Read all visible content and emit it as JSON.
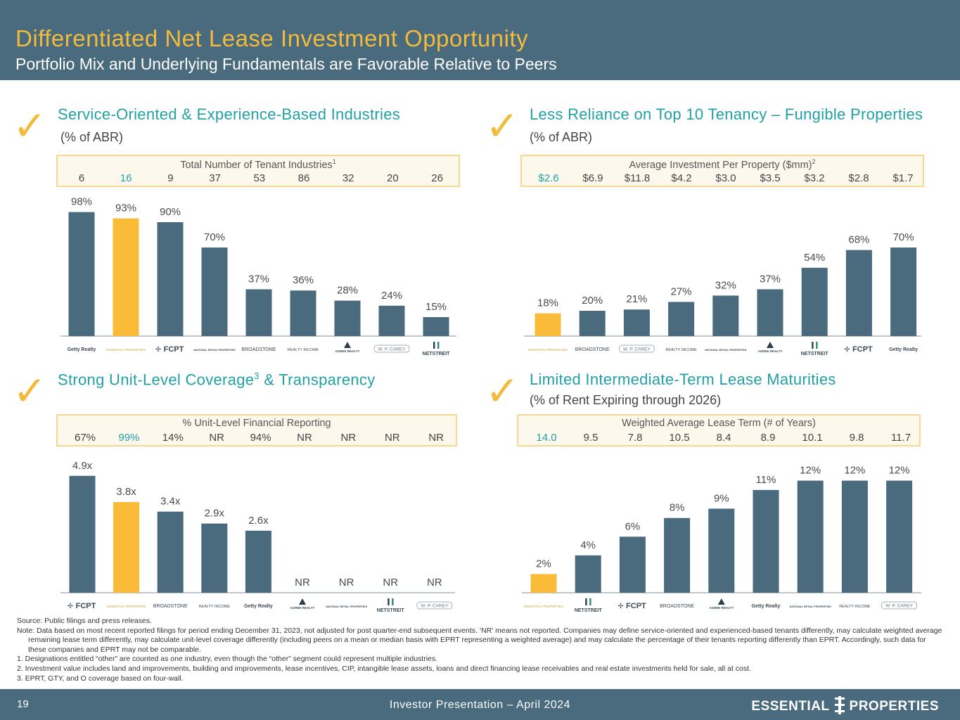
{
  "header": {
    "title": "Differentiated Net Lease Investment Opportunity",
    "subtitle": "Portfolio Mix and Underlying Fundamentals are Favorable Relative to Peers"
  },
  "check_icon": "✓",
  "colors": {
    "bar": "#4a6a7e",
    "highlight": "#f9bb38",
    "accent_text": "#21a0a6",
    "title_gold": "#f3bb3c"
  },
  "q1": {
    "title": "Service-Oriented & Experience-Based Industries",
    "subtitle": "(% of ABR)",
    "box_title": "Total Number of Tenant Industries",
    "box_sup": "1",
    "box_values": [
      "6",
      "16",
      "9",
      "37",
      "53",
      "86",
      "32",
      "20",
      "26"
    ]
  },
  "q2": {
    "title": "Less Reliance on Top 10 Tenancy – Fungible Properties",
    "subtitle": "(% of ABR)",
    "box_title": "Average Investment Per Property ($mm)",
    "box_sup": "2",
    "box_values": [
      "$2.6",
      "$6.9",
      "$11.8",
      "$4.2",
      "$3.0",
      "$3.5",
      "$3.2",
      "$2.8",
      "$1.7"
    ]
  },
  "q3": {
    "title_pre": "Strong Unit-Level Coverage",
    "title_sup": "3",
    "title_post": " & Transparency",
    "box_title": "% Unit-Level Financial Reporting",
    "box_values": [
      "67%",
      "99%",
      "14%",
      "NR",
      "94%",
      "NR",
      "NR",
      "NR",
      "NR"
    ]
  },
  "q4": {
    "title": "Limited Intermediate-Term Lease Maturities",
    "subtitle": "(% of Rent Expiring through 2026)",
    "box_title": "Weighted Average Lease Term (# of Years)",
    "box_values": [
      "14.0",
      "9.5",
      "7.8",
      "10.5",
      "8.4",
      "8.9",
      "10.1",
      "9.8",
      "11.7"
    ]
  },
  "chart_data": [
    {
      "type": "bar",
      "title": "Service-Oriented & Experience-Based Industries",
      "categories": [
        "Getty Realty",
        "Essential Properties",
        "FCPT",
        "National Retail Properties",
        "Broadstone",
        "Realty Income",
        "Agree Realty",
        "W. P. Carey",
        "NetStreit"
      ],
      "values": [
        98,
        93,
        90,
        70,
        37,
        36,
        28,
        24,
        15
      ],
      "labels": [
        "98%",
        "93%",
        "90%",
        "70%",
        "37%",
        "36%",
        "28%",
        "24%",
        "15%"
      ],
      "highlight_index": 1,
      "ylim": [
        0,
        100
      ]
    },
    {
      "type": "bar",
      "title": "Less Reliance on Top 10 Tenancy – Fungible Properties",
      "categories": [
        "Essential Properties",
        "Broadstone",
        "W. P. Carey",
        "Realty Income",
        "National Retail Properties",
        "Agree Realty",
        "NetStreit",
        "FCPT",
        "Getty Realty"
      ],
      "values": [
        18,
        20,
        21,
        27,
        32,
        37,
        54,
        68,
        70
      ],
      "labels": [
        "18%",
        "20%",
        "21%",
        "27%",
        "32%",
        "37%",
        "54%",
        "68%",
        "70%"
      ],
      "highlight_index": 0,
      "ylim": [
        0,
        100
      ]
    },
    {
      "type": "bar",
      "title": "Strong Unit-Level Coverage & Transparency",
      "categories": [
        "FCPT",
        "Essential Properties",
        "Broadstone",
        "Realty Income",
        "Getty Realty",
        "Agree Realty",
        "National Retail Properties",
        "NetStreit",
        "W. P. Carey"
      ],
      "values": [
        4.9,
        3.8,
        3.4,
        2.9,
        2.6,
        0,
        0,
        0,
        0
      ],
      "labels": [
        "4.9x",
        "3.8x",
        "3.4x",
        "2.9x",
        "2.6x",
        "NR",
        "NR",
        "NR",
        "NR"
      ],
      "highlight_index": 1,
      "ylim": [
        0,
        5.6
      ]
    },
    {
      "type": "bar",
      "title": "Limited Intermediate-Term Lease Maturities",
      "categories": [
        "Essential Properties",
        "NetStreit",
        "FCPT",
        "Broadstone",
        "Agree Realty",
        "Getty Realty",
        "National Retail Properties",
        "Realty Income",
        "W. P. Carey"
      ],
      "values": [
        2,
        4,
        6,
        8,
        9,
        11,
        12,
        12,
        12
      ],
      "labels": [
        "2%",
        "4%",
        "6%",
        "8%",
        "9%",
        "11%",
        "12%",
        "12%",
        "12%"
      ],
      "highlight_index": 0,
      "ylim": [
        0,
        14
      ]
    }
  ],
  "logos": {
    "getty": "Getty Realty",
    "essential": "ESSENTIAL PROPERTIES",
    "fcpt": "FCPT",
    "nnn": "NATIONAL RETAIL PROPERTIES",
    "broadstone": "BROADSTONE",
    "realty": "REALTY INCOME",
    "agree": "AGREE REALTY",
    "wpc": "W. P. CAREY",
    "netstreit": "NETSTREIT"
  },
  "logo_order": [
    [
      "getty",
      "essential",
      "fcpt",
      "nnn",
      "broadstone",
      "realty",
      "agree",
      "wpc",
      "netstreit"
    ],
    [
      "essential",
      "broadstone",
      "wpc",
      "realty",
      "nnn",
      "agree",
      "netstreit",
      "fcpt",
      "getty"
    ],
    [
      "fcpt",
      "essential",
      "broadstone",
      "realty",
      "getty",
      "agree",
      "nnn",
      "netstreit",
      "wpc"
    ],
    [
      "essential",
      "netstreit",
      "fcpt",
      "broadstone",
      "agree",
      "getty",
      "nnn",
      "realty",
      "wpc"
    ]
  ],
  "notes": {
    "source": "Source: Public filings and press releases.",
    "note": "Note: Data based on most recent reported filings for period ending December 31, 2023, not adjusted for post quarter-end subsequent events. ‘NR’ means not reported. Companies may define service-oriented and experienced-based tenants differently, may calculate weighted average remaining lease term differently, may calculate unit-level coverage differently (including peers on a mean or median basis with EPRT representing a weighted average) and may calculate the percentage of their tenants reporting differently than EPRT. Accordingly, such data for these companies and EPRT may not be comparable.",
    "n1": "1.  Designations entitled “other” are counted as one industry, even though the “other” segment could represent multiple industries.",
    "n2": "2.  Investment value includes land and improvements, building and improvements, lease incentives, CIP, intangible lease assets, loans and direct financing lease receivables and real estate investments held for sale, all at cost.",
    "n3": "3.  EPRT, GTY, and O coverage based on four-wall."
  },
  "footer": {
    "page": "19",
    "center": "Investor Presentation – April 2024",
    "brand_left": "ESSENTIAL",
    "brand_right": "PROPERTIES"
  }
}
